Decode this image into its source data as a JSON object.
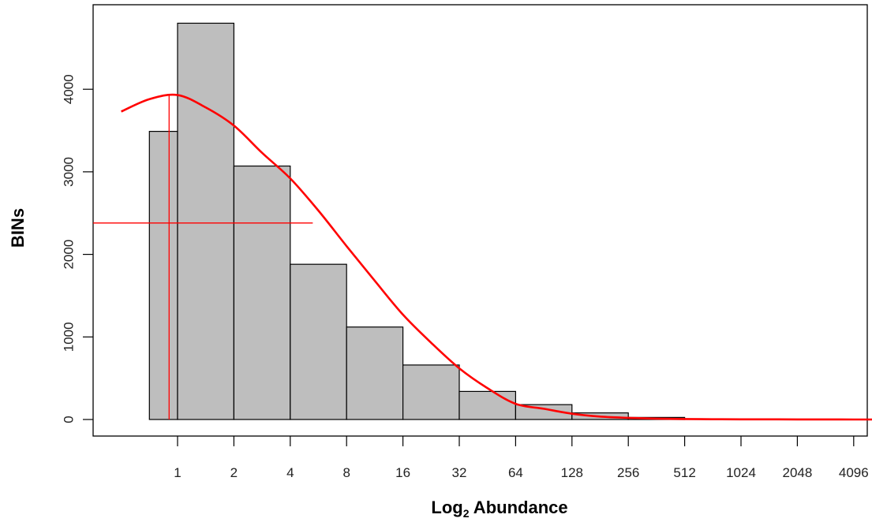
{
  "chart_data": {
    "type": "bar",
    "xlabel": "Log",
    "xlabel_subscript": "2",
    "xlabel_suffix": " Abundance",
    "ylabel": "BINs",
    "x_ticks": [
      "1",
      "2",
      "4",
      "8",
      "16",
      "32",
      "64",
      "128",
      "256",
      "512",
      "1024",
      "2048",
      "4096"
    ],
    "y_ticks": [
      "0",
      "1000",
      "2000",
      "3000",
      "4000"
    ],
    "ylim": [
      -300,
      5000
    ],
    "bars": [
      {
        "from": -0.5,
        "to": 0,
        "value": 3490
      },
      {
        "from": 0,
        "to": 1,
        "value": 4800
      },
      {
        "from": 1,
        "to": 2,
        "value": 3070
      },
      {
        "from": 2,
        "to": 3,
        "value": 1880
      },
      {
        "from": 3,
        "to": 4,
        "value": 1120
      },
      {
        "from": 4,
        "to": 5,
        "value": 660
      },
      {
        "from": 5,
        "to": 6,
        "value": 340
      },
      {
        "from": 6,
        "to": 7,
        "value": 180
      },
      {
        "from": 7,
        "to": 8,
        "value": 80
      },
      {
        "from": 8,
        "to": 9,
        "value": 25
      }
    ],
    "fit_curve": {
      "color": "#ff0000",
      "x": [
        -1,
        -0.5,
        0,
        0.5,
        1,
        1.5,
        2,
        2.5,
        3,
        3.5,
        4,
        4.5,
        5,
        5.5,
        6,
        6.5,
        7,
        7.5,
        8,
        8.5,
        9,
        9.5,
        10,
        11,
        12,
        13
      ],
      "y": [
        3730,
        3880,
        3930,
        3780,
        3560,
        3230,
        2920,
        2530,
        2100,
        1680,
        1270,
        930,
        620,
        380,
        190,
        130,
        70,
        35,
        20,
        10,
        5,
        3,
        2,
        1,
        0,
        0
      ]
    },
    "mode_marker": {
      "x": -0.15,
      "y": 3930
    },
    "half_marker": {
      "y": 2380,
      "x_end": 2.4
    },
    "bar_fill": "#bebebe",
    "bar_stroke": "#000000",
    "grid": false
  }
}
